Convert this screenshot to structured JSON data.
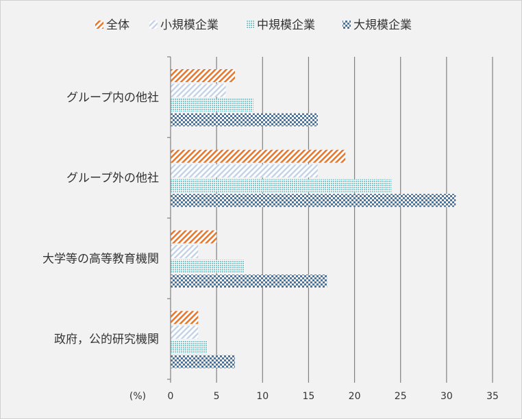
{
  "chart_data": {
    "type": "bar",
    "orientation": "horizontal",
    "categories": [
      "グループ内の他社",
      "グループ外の他社",
      "大学等の高等教育機関",
      "政府，公的研究機関"
    ],
    "series": [
      {
        "name": "全体",
        "values": [
          7,
          19,
          5,
          3
        ],
        "color": "#e07b39",
        "pattern": "diagonal-stripe"
      },
      {
        "name": "小規模企業",
        "values": [
          6,
          16,
          3,
          3
        ],
        "color": "#c6d3e2",
        "pattern": "diagonal-stripe"
      },
      {
        "name": "中規模企業",
        "values": [
          9,
          24,
          8,
          4
        ],
        "color": "#7ec8cf",
        "pattern": "dots"
      },
      {
        "name": "大規模企業",
        "values": [
          16,
          31,
          17,
          7
        ],
        "color": "#4f7399",
        "pattern": "checker"
      }
    ],
    "xticks": [
      0,
      5,
      10,
      15,
      20,
      25,
      30,
      35
    ],
    "xlim": [
      0,
      35
    ],
    "unit_label": "(%)",
    "grid": true,
    "legend_position": "top"
  }
}
